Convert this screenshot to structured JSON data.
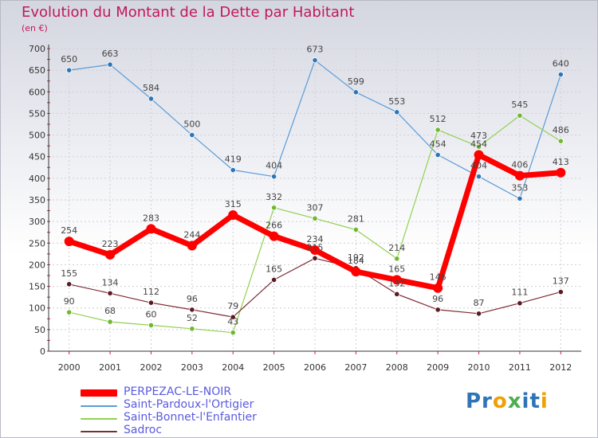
{
  "chart_data": {
    "type": "line",
    "title": "Evolution du Montant de la Dette par Habitant",
    "unit_label": "(en €)",
    "x": [
      "2000",
      "2001",
      "2002",
      "2003",
      "2004",
      "2005",
      "2006",
      "2007",
      "2008",
      "2009",
      "2010",
      "2011",
      "2012"
    ],
    "ylim": [
      0,
      700
    ],
    "yticks": [
      0,
      50,
      100,
      150,
      200,
      250,
      300,
      350,
      400,
      450,
      500,
      550,
      600,
      650,
      700
    ],
    "grid": true,
    "legend_position": "bottom-left",
    "series": [
      {
        "name": "Saint-Pardoux-l'Ortigier",
        "color": "#5b9bd5",
        "point_color": "#2e75b6",
        "values": [
          650,
          663,
          584,
          500,
          419,
          404,
          673,
          599,
          553,
          454,
          404,
          353,
          640
        ]
      },
      {
        "name": "Saint-Bonnet-l'Enfantier",
        "color": "#92d050",
        "point_color": "#70b830",
        "values": [
          90,
          68,
          60,
          52,
          43,
          332,
          307,
          281,
          214,
          512,
          473,
          545,
          486
        ]
      },
      {
        "name": "Sadroc",
        "color": "#7b2c35",
        "point_color": "#5a1a22",
        "values": [
          155,
          134,
          112,
          96,
          79,
          165,
          215,
          192,
          132,
          96,
          87,
          111,
          137
        ]
      },
      {
        "name": "PERPEZAC-LE-NOIR",
        "color": "#ff0000",
        "point_color": "#ff0000",
        "values": [
          254,
          223,
          283,
          244,
          315,
          266,
          234,
          184,
          165,
          146,
          454,
          406,
          413
        ]
      }
    ]
  },
  "legend_order": [
    3,
    0,
    1,
    2
  ],
  "logo": {
    "parts": [
      "Pr",
      "o",
      "x",
      "i",
      "t",
      "i"
    ],
    "colors": [
      "#2e75b6",
      "#f0a000",
      "#4caf50",
      "#2e75b6",
      "#2e75b6",
      "#f0a000"
    ]
  }
}
